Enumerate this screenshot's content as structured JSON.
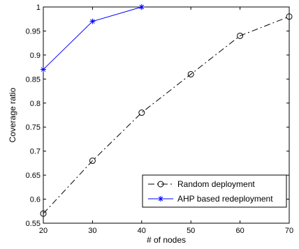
{
  "chart_data": {
    "type": "line",
    "xlabel": "# of nodes",
    "ylabel": "Coverage ratio",
    "xlim": [
      20,
      70
    ],
    "ylim": [
      0.55,
      1.0
    ],
    "xticks": [
      20,
      30,
      40,
      50,
      60,
      70
    ],
    "yticks": [
      0.55,
      0.6,
      0.65,
      0.7,
      0.75,
      0.8,
      0.85,
      0.9,
      0.95,
      1.0
    ],
    "xtick_labels": [
      "20",
      "30",
      "40",
      "50",
      "60",
      "70"
    ],
    "ytick_labels": [
      "0.55",
      "0.6",
      "0.65",
      "0.7",
      "0.75",
      "0.8",
      "0.85",
      "0.9",
      "0.95",
      "1"
    ],
    "grid": false,
    "legend_position": "bottom-right",
    "series": [
      {
        "name": "Random deployment",
        "x": [
          20,
          30,
          40,
          50,
          60,
          70
        ],
        "values": [
          0.57,
          0.68,
          0.78,
          0.86,
          0.94,
          0.98
        ],
        "color": "#000000",
        "line_style": "dash-dot",
        "marker": "circle"
      },
      {
        "name": "AHP based redeployment",
        "x": [
          20,
          30,
          40
        ],
        "values": [
          0.87,
          0.97,
          1.0
        ],
        "color": "#0000ff",
        "line_style": "solid",
        "marker": "star"
      }
    ]
  }
}
